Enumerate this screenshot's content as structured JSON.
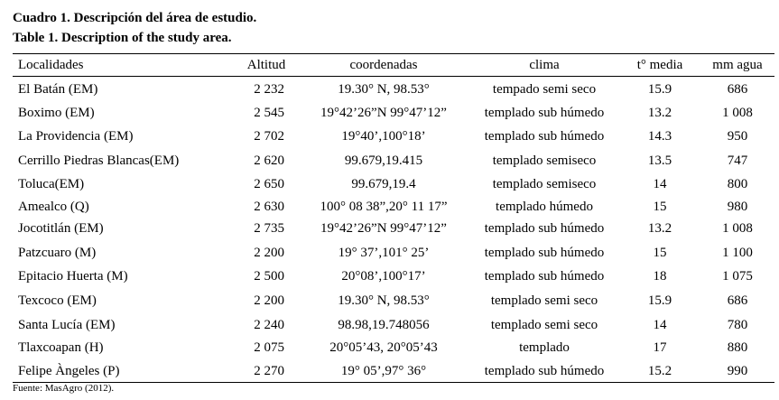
{
  "title": [
    "Cuadro 1. Descripción del área de estudio.",
    "Table 1. Description of the study area."
  ],
  "table": {
    "header": [
      "Localidades",
      "Altitud",
      "coordenadas",
      "clima",
      "t° media",
      "mm agua"
    ],
    "rows": [
      [
        "El Batán (EM)",
        "2 232",
        "19.30° N, 98.53°",
        "tempado semi seco",
        "15.9",
        "686"
      ],
      [
        "Boximo (EM)",
        "2 545",
        "19°42’26”N 99°47’12”",
        "templado sub húmedo",
        "13.2",
        "1 008"
      ],
      [
        "La Providencia (EM)",
        "2 702",
        "19°40’,100°18’",
        "templado sub húmedo",
        "14.3",
        "950"
      ],
      [
        "Cerrillo Piedras Blancas(EM)",
        "2 620",
        "99.679,19.415",
        "templado semiseco",
        "13.5",
        "747"
      ],
      [
        "Toluca(EM)",
        "2 650",
        "99.679,19.4",
        "templado semiseco",
        "14",
        "800"
      ],
      [
        "Amealco (Q)",
        "2 630",
        "100° 08 38”,20° 11 17”",
        "templado húmedo",
        "15",
        "980"
      ],
      [
        "Jocotitlán (EM)",
        "2 735",
        "19°42’26”N 99°47’12”",
        "templado sub húmedo",
        "13.2",
        "1 008"
      ],
      [
        "Patzcuaro (M)",
        "2 200",
        "19° 37’,101° 25’",
        "templado sub húmedo",
        "15",
        "1 100"
      ],
      [
        "Epitacio Huerta (M)",
        "2 500",
        "20°08’,100°17’",
        "templado sub húmedo",
        "18",
        "1 075"
      ],
      [
        "Texcoco (EM)",
        "2 200",
        "19.30° N, 98.53°",
        "templado semi seco",
        "15.9",
        "686"
      ],
      [
        "Santa Lucía (EM)",
        "2 240",
        "98.98,19.748056",
        "templado semi seco",
        "14",
        "780"
      ],
      [
        "Tlaxcoapan (H)",
        "2 075",
        "20°05’43, 20°05’43",
        "templado",
        "17",
        "880"
      ],
      [
        "Felipe Àngeles (P)",
        "2 270",
        "19° 05’,97° 36°",
        "templado sub húmedo",
        "15.2",
        "990"
      ]
    ]
  },
  "source": "Fuente: MasAgro (2012)."
}
